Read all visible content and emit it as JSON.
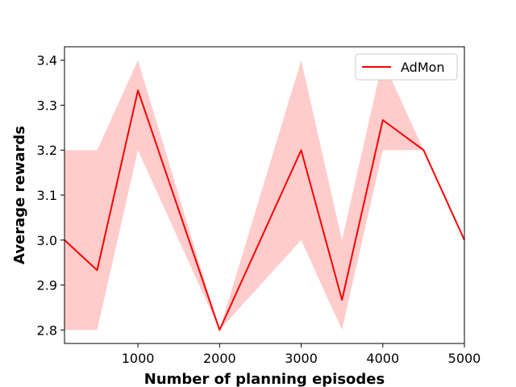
{
  "chart_data": {
    "type": "line",
    "xlabel": "Number of planning episodes",
    "ylabel": "Average rewards",
    "xlim": [
      100,
      5000
    ],
    "ylim": [
      2.77,
      3.43
    ],
    "xticks": [
      1000,
      2000,
      3000,
      4000,
      5000
    ],
    "yticks": [
      2.8,
      2.9,
      3.0,
      3.1,
      3.2,
      3.3,
      3.4
    ],
    "xtick_labels": [
      "1000",
      "2000",
      "3000",
      "4000",
      "5000"
    ],
    "ytick_labels": [
      "2.8",
      "2.9",
      "3.0",
      "3.1",
      "3.2",
      "3.3",
      "3.4"
    ],
    "grid": false,
    "legend_position": "top-right",
    "series": [
      {
        "name": "AdMon",
        "color": "#ff0000",
        "band_color": "#ffcccc",
        "x": [
          100,
          500,
          1000,
          2000,
          3000,
          3500,
          4000,
          4500,
          5000
        ],
        "y": [
          3.0,
          2.933,
          3.333,
          2.8,
          3.2,
          2.867,
          3.267,
          3.2,
          3.0
        ],
        "lower": [
          2.8,
          2.8,
          3.2,
          2.8,
          3.0,
          2.8,
          3.2,
          3.2,
          3.0
        ],
        "upper": [
          3.2,
          3.2,
          3.4,
          2.8,
          3.4,
          3.0,
          3.4,
          3.2,
          3.0
        ]
      }
    ]
  }
}
